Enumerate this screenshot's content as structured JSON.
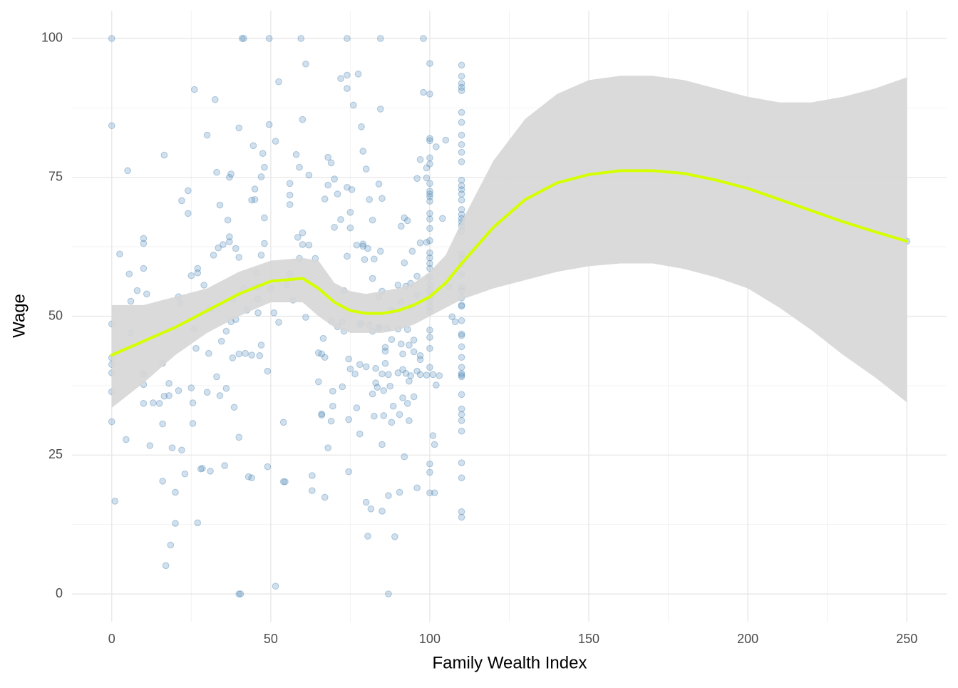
{
  "chart_data": {
    "type": "scatter",
    "x_label": "Family Wealth Index",
    "y_label": "Wage",
    "xlim": [
      -12.5,
      262.5
    ],
    "ylim": [
      -5,
      105
    ],
    "xticks": [
      0,
      50,
      100,
      150,
      200,
      250
    ],
    "yticks": [
      0,
      25,
      50,
      75,
      100
    ],
    "x_minor_ticks": [
      25,
      75,
      125,
      175,
      225
    ],
    "y_minor_ticks": [
      12.5,
      37.5,
      62.5,
      87.5
    ],
    "grid": true,
    "color": "#4682b4",
    "x": [
      0,
      0,
      0,
      0,
      0,
      0,
      0,
      0,
      1,
      2.5,
      4.5,
      5,
      5.5,
      6,
      6,
      8,
      10,
      10,
      10,
      10,
      10,
      10,
      11,
      12,
      13,
      15,
      16,
      16,
      16,
      16.5,
      16.5,
      17,
      18,
      18,
      18.5,
      19,
      20,
      20,
      21,
      21,
      21.5,
      22,
      22,
      23,
      24,
      24,
      25,
      25,
      25.5,
      25.5,
      26,
      26,
      26.5,
      27,
      27,
      27,
      28,
      28.5,
      29,
      30,
      30,
      30.5,
      31,
      31,
      32,
      32.5,
      33,
      33,
      33.5,
      34,
      34,
      34.5,
      35,
      35.5,
      36,
      36,
      36.5,
      37,
      37,
      37,
      37.5,
      37.5,
      38,
      38,
      38.5,
      39,
      39,
      40,
      40,
      40,
      40,
      40,
      40.5,
      41,
      41.5,
      41.5,
      42,
      42.5,
      43,
      44,
      44,
      44,
      44.5,
      45,
      45,
      45.5,
      45.5,
      46,
      46,
      46.5,
      47,
      47,
      47,
      47.5,
      48,
      48,
      48,
      49,
      49,
      49.5,
      49.5,
      50,
      51,
      51.5,
      51.5,
      52.5,
      52.5,
      54,
      54,
      54.5,
      55,
      56,
      56,
      56,
      56,
      57,
      58,
      58.5,
      59,
      59,
      59.5,
      60,
      60,
      60,
      61,
      61,
      62,
      62,
      63,
      63,
      64,
      65,
      65,
      66,
      66,
      66,
      66.5,
      67,
      67,
      67,
      68,
      68,
      68,
      69,
      69,
      69,
      69.5,
      69.5,
      70,
      70,
      71,
      71,
      72,
      72,
      72.5,
      72.5,
      73,
      73,
      74,
      74,
      74,
      74,
      74,
      74.5,
      74.5,
      74.5,
      75,
      75,
      75,
      75.5,
      76,
      76.5,
      77,
      77,
      77.5,
      78,
      78,
      78,
      78.5,
      78.5,
      79,
      79,
      79,
      79.5,
      80,
      80,
      80,
      80.5,
      80.5,
      81,
      81,
      81.5,
      82,
      82,
      82,
      82,
      82.5,
      82.5,
      83,
      83,
      83.5,
      84,
      84,
      84,
      84,
      84.5,
      84.5,
      84.5,
      85,
      85,
      85,
      85,
      85,
      85.5,
      85.5,
      86,
      86,
      86,
      86.5,
      87,
      87,
      87,
      87.5,
      88,
      88,
      88,
      88.5,
      89,
      90,
      90,
      90,
      90.5,
      90.5,
      91,
      91,
      91,
      91.5,
      91.5,
      91.5,
      92,
      92,
      92,
      92.5,
      92.5,
      93,
      93,
      93,
      93.5,
      93.5,
      93.5,
      94,
      94,
      94,
      94.5,
      95,
      95,
      95,
      96,
      96,
      96,
      96,
      96,
      97,
      97,
      97,
      97,
      97,
      98,
      98,
      99,
      99,
      99,
      99,
      101,
      101.5,
      101,
      101.5,
      102,
      102,
      103,
      100,
      100,
      100,
      100,
      100,
      100,
      100,
      100,
      100,
      100,
      100,
      100,
      100,
      100,
      100,
      100,
      100,
      100,
      100,
      100,
      100,
      100,
      100,
      100,
      100,
      100,
      100,
      100,
      100,
      100,
      100,
      100,
      100,
      104,
      105,
      106,
      107,
      108,
      110,
      110,
      110,
      110,
      110,
      110,
      110,
      110,
      110,
      110,
      110,
      110,
      110,
      110,
      110,
      110,
      110,
      110,
      110,
      110,
      110,
      110,
      110,
      110,
      110,
      110,
      110,
      110,
      110,
      110,
      110,
      110,
      110,
      110,
      110,
      110,
      110,
      110,
      110,
      110,
      110,
      110,
      110,
      110,
      110,
      110,
      110,
      110,
      110,
      250
    ],
    "values": [
      100,
      84.3,
      48.6,
      42.5,
      41.3,
      39.8,
      36.4,
      31,
      16.7,
      61.2,
      27.8,
      76.2,
      57.6,
      47,
      52.7,
      54.6,
      64,
      63.1,
      58.6,
      39.6,
      37.7,
      34.3,
      54,
      26.7,
      34.4,
      34.3,
      30.6,
      41.5,
      20.3,
      35.6,
      79,
      5.1,
      37.9,
      35.7,
      8.8,
      26.3,
      12.7,
      18.3,
      36.6,
      53.5,
      52.3,
      25.9,
      70.8,
      21.6,
      68.5,
      72.6,
      37.1,
      57.3,
      30.7,
      34.4,
      47.7,
      90.8,
      44.2,
      57.8,
      58.6,
      12.8,
      22.5,
      22.6,
      55.6,
      82.6,
      36.3,
      43.3,
      22.1,
      51.3,
      61,
      89,
      75.9,
      39.1,
      62.3,
      70,
      35.7,
      45.5,
      62.9,
      23.1,
      47.3,
      37,
      67.3,
      64.3,
      75,
      63.4,
      49,
      75.6,
      42.5,
      53,
      33.6,
      49.4,
      62.2,
      83.9,
      60.6,
      28.2,
      43.2,
      0,
      0,
      100,
      100,
      55,
      43.3,
      51.1,
      21.1,
      20.9,
      70.9,
      43,
      80.7,
      72.9,
      71,
      57.8,
      55.3,
      50.6,
      53.1,
      42.9,
      75.1,
      61,
      44.8,
      79.3,
      76.8,
      63.1,
      67.7,
      22.9,
      40.1,
      84.5,
      100,
      55,
      50.6,
      81.5,
      1.4,
      48.9,
      92.2,
      30.9,
      20.2,
      20.2,
      55.6,
      73.9,
      57.6,
      71.8,
      70.1,
      52.9,
      79.1,
      64.2,
      76.8,
      60.4,
      100,
      65,
      62.9,
      85.4,
      95.4,
      49.8,
      62.8,
      75.4,
      21.3,
      18.6,
      60.4,
      38.2,
      43.4,
      32.4,
      32.2,
      43.2,
      46,
      71.1,
      42.6,
      17.4,
      26.3,
      73.6,
      78.6,
      49.1,
      31.1,
      77.6,
      33.8,
      36.5,
      66,
      74.7,
      72,
      48.1,
      67.4,
      92.8,
      49,
      37.3,
      54.6,
      47.3,
      100,
      91,
      93.4,
      60.8,
      73.2,
      42.3,
      22,
      31.4,
      40.5,
      68.7,
      65.9,
      72.8,
      88,
      39.6,
      33.5,
      62.8,
      93.6,
      28.8,
      48.5,
      41.3,
      84.1,
      48.7,
      79.7,
      63,
      62.6,
      60.2,
      16.5,
      76.5,
      40.9,
      10.4,
      62.2,
      71,
      48.4,
      15.3,
      36,
      56.8,
      67.3,
      47.3,
      32,
      60.3,
      40.6,
      38,
      37.2,
      73.8,
      53.4,
      47.8,
      48.1,
      61.7,
      100,
      87.3,
      71.2,
      54.5,
      14.9,
      26.9,
      39.6,
      32.1,
      36.6,
      44.4,
      41.5,
      43.7,
      47.8,
      39.5,
      0,
      17.7,
      37.4,
      51,
      45.8,
      30.9,
      33.8,
      10.3,
      47.7,
      39.8,
      55.6,
      32.3,
      18.3,
      52.6,
      45,
      66.2,
      40.4,
      43.2,
      35.3,
      59.6,
      67.7,
      24.7,
      39.7,
      55.4,
      67.2,
      47.6,
      34.3,
      44.8,
      38.3,
      31.2,
      55.9,
      51.7,
      39.3,
      61.7,
      45.7,
      43.6,
      35.5,
      40.1,
      57.2,
      53.8,
      19.1,
      74.8,
      78.2,
      42.9,
      63.2,
      42.2,
      39.5,
      100,
      90.3,
      76.7,
      74.9,
      39.4,
      63.3,
      28.5,
      26.9,
      39.5,
      18.2,
      80.5,
      37.6,
      39.3,
      95.5,
      90,
      82,
      81.6,
      78.5,
      77.4,
      73.9,
      72.5,
      72,
      71.5,
      70.7,
      68.5,
      67.5,
      65.8,
      63.6,
      61.4,
      60.5,
      59.5,
      58.6,
      57,
      55.7,
      54.6,
      53.5,
      52.8,
      51.7,
      50.8,
      47.5,
      46.2,
      44.2,
      40.8,
      23.4,
      21.9,
      18.2,
      67.6,
      81.7,
      55.3,
      49.9,
      49,
      95.2,
      93.2,
      91.9,
      91.2,
      90.6,
      86.7,
      84.9,
      82.6,
      80.9,
      79.5,
      77.8,
      74.5,
      73.5,
      72.8,
      72,
      70.9,
      69.2,
      68.3,
      67.6,
      67,
      66.3,
      65.3,
      61.2,
      60.3,
      59.4,
      57.5,
      55.3,
      54.6,
      53.3,
      52,
      51.8,
      49.2,
      46.8,
      46.5,
      44.5,
      42.6,
      40.8,
      39.7,
      39.4,
      39.1,
      35.9,
      33.3,
      32.3,
      31.2,
      29.3,
      23.6,
      20.9,
      14.8,
      13.8,
      63.5
    ],
    "smooth": {
      "color": "#d4ff00",
      "band_color": "#d6d6d6",
      "x": [
        0,
        10,
        20,
        30,
        40,
        50,
        60,
        65,
        70,
        75,
        80,
        85,
        90,
        95,
        100,
        105,
        110,
        120,
        130,
        140,
        150,
        160,
        170,
        180,
        190,
        200,
        210,
        220,
        230,
        240,
        250
      ],
      "values": [
        43,
        45.5,
        48,
        51,
        54,
        56.3,
        56.8,
        55,
        52.5,
        51,
        50.5,
        50.5,
        51,
        52,
        53.5,
        56,
        59.5,
        66,
        71,
        74,
        75.5,
        76.2,
        76.2,
        75.7,
        74.5,
        73,
        71,
        69,
        67,
        65.2,
        63.5
      ],
      "lower": [
        33.5,
        38,
        43,
        47,
        50,
        52.5,
        52.5,
        50,
        48,
        47,
        47,
        47,
        47.5,
        48.5,
        50,
        51.5,
        53,
        55,
        56.5,
        58,
        59,
        59.5,
        59.5,
        58.5,
        57,
        55,
        51.5,
        47.5,
        43,
        39,
        34.5
      ],
      "upper": [
        52,
        52,
        53.5,
        55,
        58,
        60,
        60.5,
        60,
        56,
        54.5,
        54,
        54.5,
        55,
        56,
        58,
        61,
        67,
        78,
        85.5,
        90,
        92.5,
        93.3,
        93.3,
        92.5,
        91,
        89.5,
        88.5,
        88.5,
        89.5,
        91,
        93
      ]
    }
  }
}
